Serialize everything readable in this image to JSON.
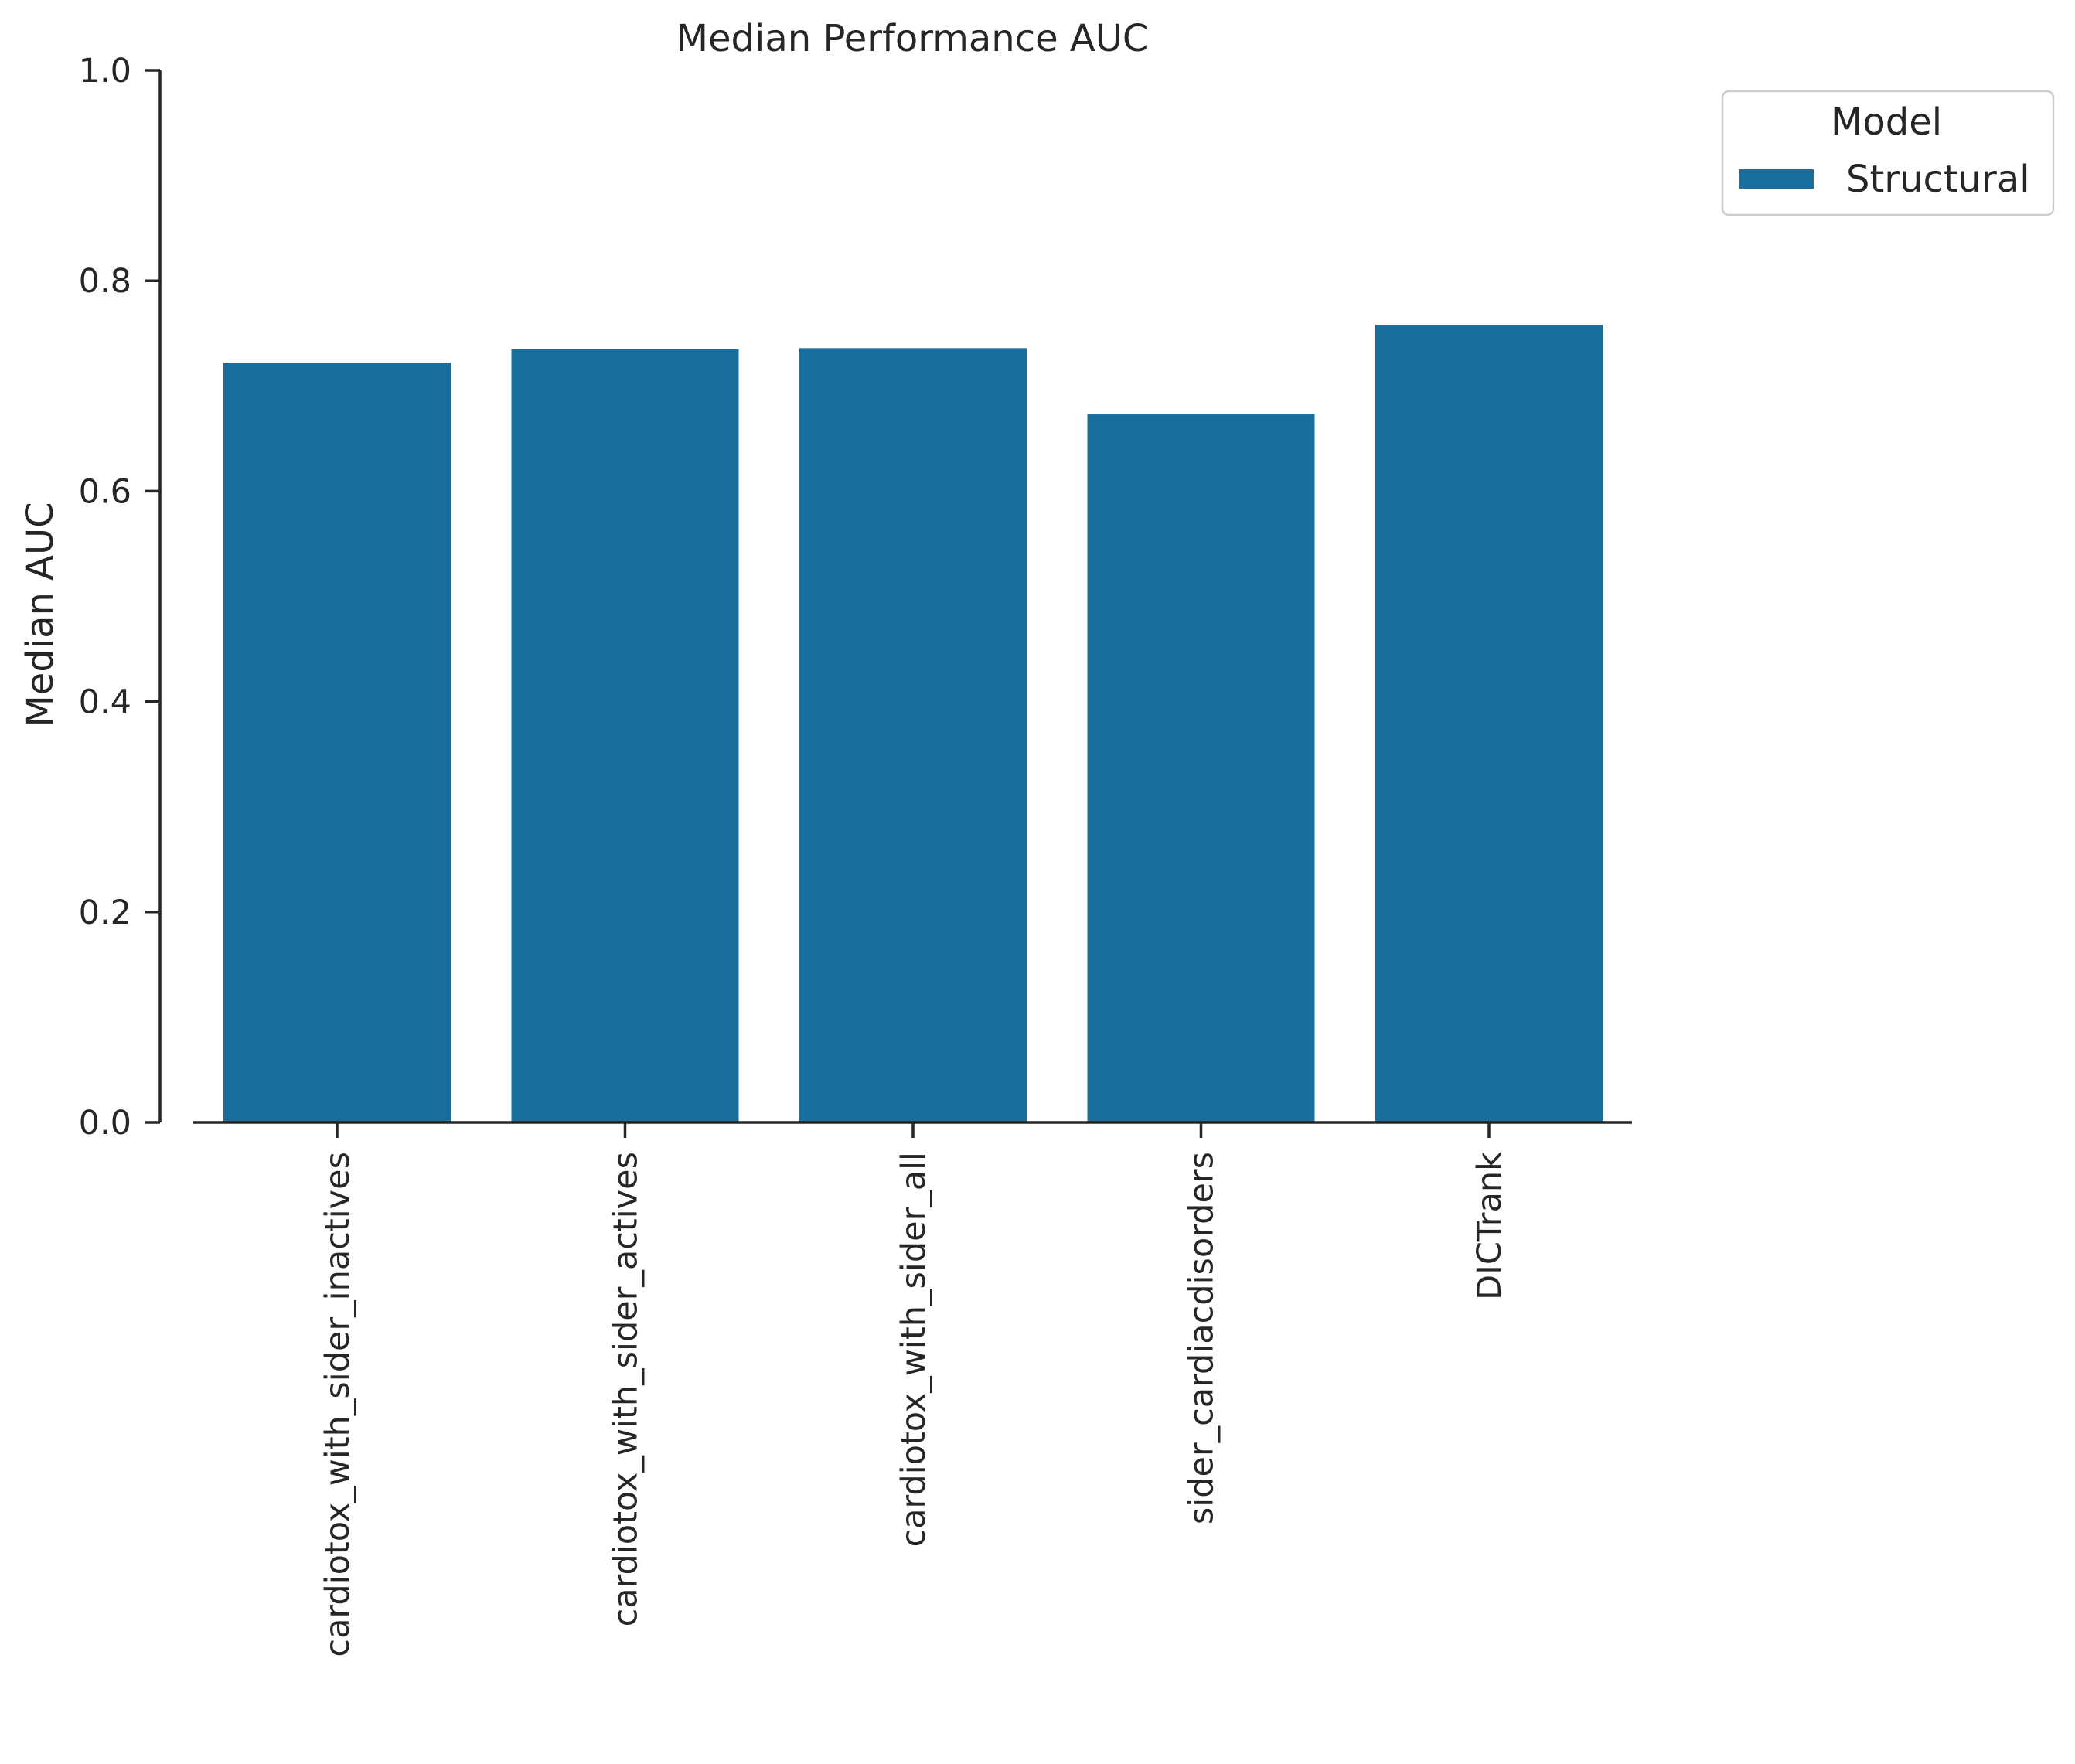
{
  "chart_data": {
    "type": "bar",
    "title": "Median Performance AUC",
    "xlabel": "",
    "ylabel": "Median AUC",
    "categories": [
      "cardiotox_with_sider_inactives",
      "cardiotox_with_sider_actives",
      "cardiotox_with_sider_all",
      "sider_cardiacdisorders",
      "DICTrank"
    ],
    "series": [
      {
        "name": "Structural",
        "values": [
          0.722,
          0.735,
          0.736,
          0.673,
          0.758
        ],
        "color": "#1a6e9e"
      }
    ],
    "ylim": [
      0,
      1.0
    ],
    "yticks": [
      "0.0",
      "0.2",
      "0.4",
      "0.6",
      "0.8",
      "1.0"
    ],
    "grid": false,
    "legend": {
      "title": "Model",
      "placement": "outside-top-right"
    }
  }
}
